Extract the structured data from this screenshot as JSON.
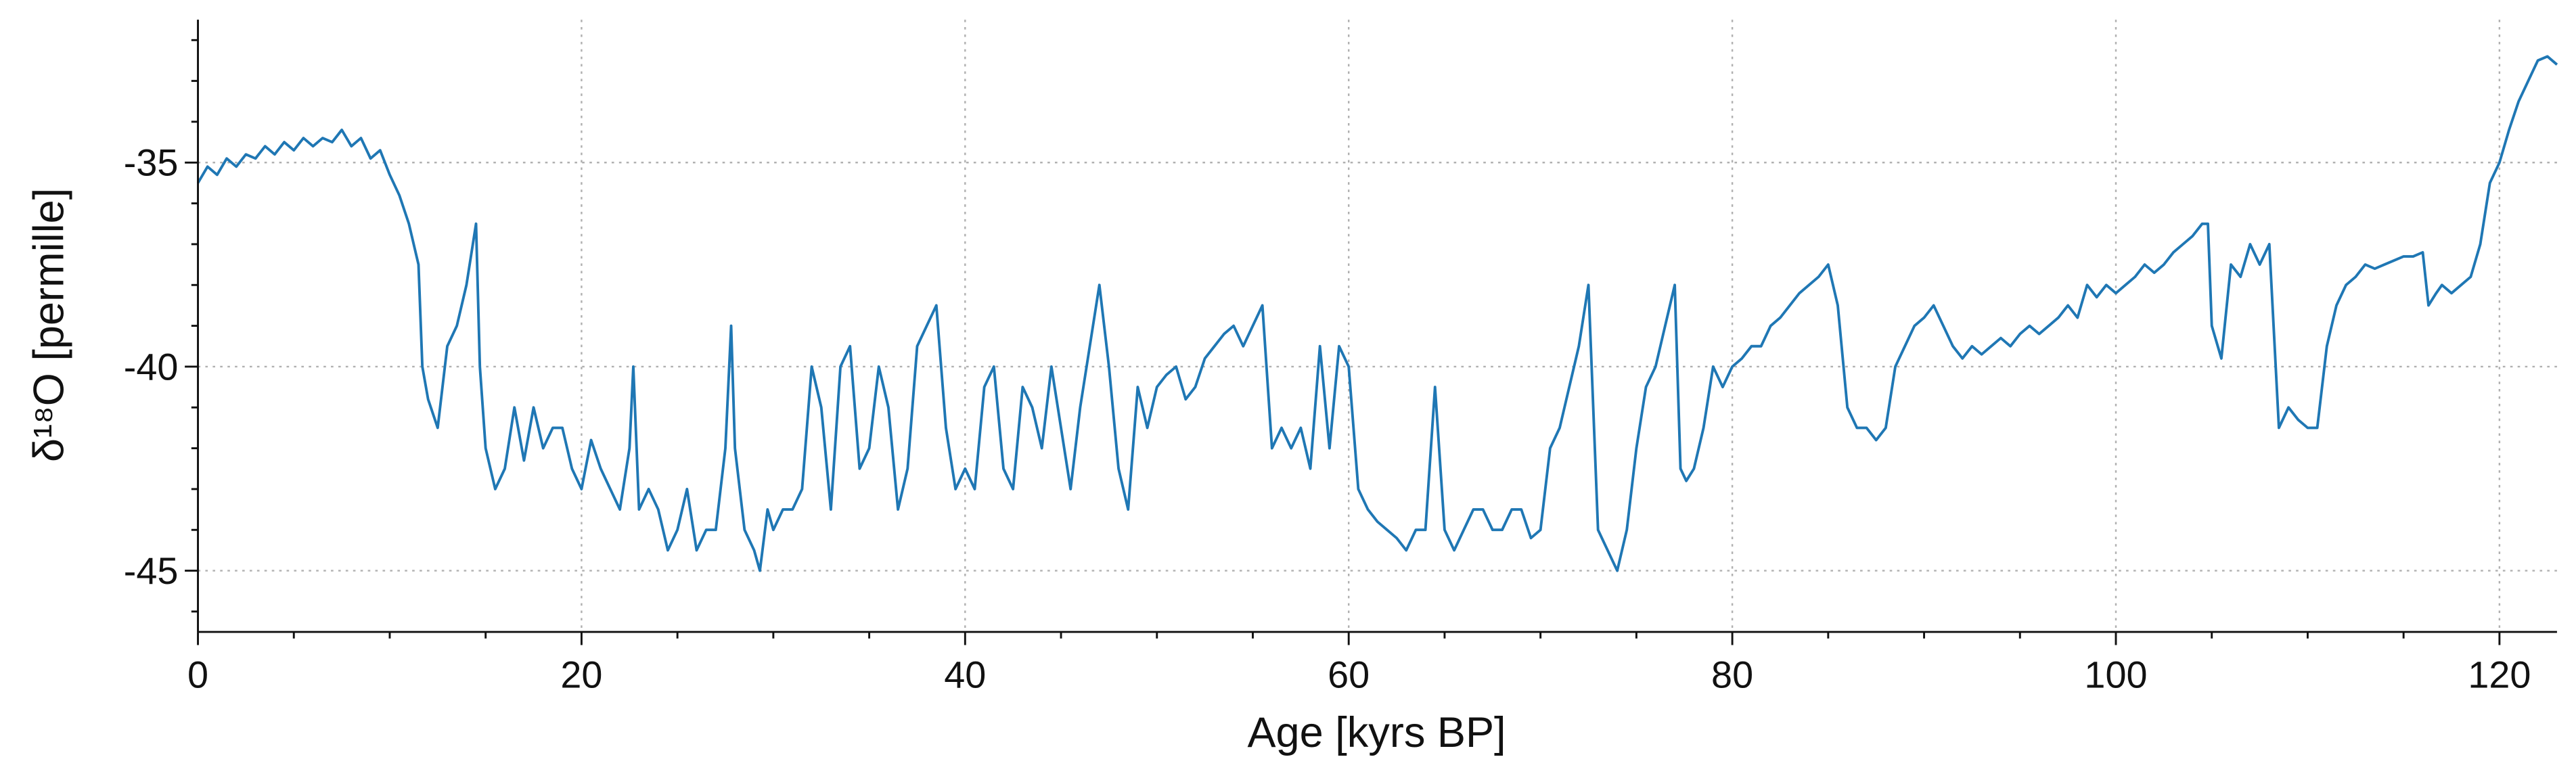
{
  "chart_data": {
    "type": "line",
    "xlabel": "Age [kyrs BP]",
    "ylabel": "δ¹⁸O [permille]",
    "xlim": [
      0,
      123
    ],
    "ylim": [
      -46.5,
      -31.5
    ],
    "xticks": [
      0,
      20,
      40,
      60,
      80,
      100,
      120
    ],
    "yticks": [
      -45,
      -40,
      -35
    ],
    "xminorticks": [
      5,
      10,
      15,
      25,
      30,
      35,
      45,
      50,
      55,
      65,
      70,
      75,
      85,
      90,
      95,
      105,
      110,
      115
    ],
    "yminorticks": [
      -46,
      -44,
      -43,
      -42,
      -41,
      -39,
      -38,
      -37,
      -36,
      -34,
      -33,
      -32
    ],
    "grid": true,
    "x": [
      0,
      0.5,
      1,
      1.5,
      2,
      2.5,
      3,
      3.5,
      4,
      4.5,
      5,
      5.5,
      6,
      6.5,
      7,
      7.5,
      8,
      8.5,
      9,
      9.5,
      10,
      10.5,
      11,
      11.5,
      11.7,
      12,
      12.5,
      13,
      13.5,
      14,
      14.5,
      14.7,
      15,
      15.5,
      16,
      16.5,
      17,
      17.5,
      18,
      18.5,
      19,
      19.5,
      20,
      20.5,
      21,
      21.5,
      22,
      22.5,
      22.7,
      23,
      23.5,
      24,
      24.5,
      25,
      25.5,
      26,
      26.5,
      27,
      27.5,
      27.8,
      28,
      28.5,
      29,
      29.3,
      29.7,
      30,
      30.5,
      31,
      31.5,
      32,
      32.5,
      33,
      33.5,
      34,
      34.5,
      35,
      35.5,
      36,
      36.5,
      37,
      37.5,
      38,
      38.5,
      39,
      39.5,
      40,
      40.5,
      41,
      41.5,
      42,
      42.5,
      43,
      43.5,
      44,
      44.5,
      45,
      45.5,
      46,
      46.5,
      47,
      47.5,
      48,
      48.5,
      49,
      49.5,
      50,
      50.5,
      51,
      51.5,
      52,
      52.5,
      53,
      53.5,
      54,
      54.5,
      55,
      55.5,
      56,
      56.5,
      57,
      57.5,
      58,
      58.5,
      59,
      59.5,
      60,
      60.5,
      61,
      61.5,
      62,
      62.5,
      63,
      63.5,
      64,
      64.5,
      65,
      65.5,
      66,
      66.5,
      67,
      67.5,
      68,
      68.5,
      69,
      69.5,
      70,
      70.5,
      71,
      71.5,
      72,
      72.5,
      73,
      73.5,
      74,
      74.5,
      75,
      75.5,
      76,
      76.5,
      77,
      77.3,
      77.6,
      78,
      78.5,
      79,
      79.5,
      80,
      80.5,
      81,
      81.5,
      82,
      82.5,
      83,
      83.5,
      84,
      84.5,
      85,
      85.5,
      86,
      86.5,
      87,
      87.5,
      88,
      88.5,
      89,
      89.5,
      90,
      90.5,
      91,
      91.5,
      92,
      92.5,
      93,
      93.5,
      94,
      94.5,
      95,
      95.5,
      96,
      96.5,
      97,
      97.5,
      98,
      98.5,
      99,
      99.5,
      100,
      100.5,
      101,
      101.5,
      102,
      102.5,
      103,
      103.5,
      104,
      104.5,
      104.8,
      105,
      105.5,
      106,
      106.5,
      107,
      107.5,
      108,
      108.5,
      109,
      109.5,
      110,
      110.5,
      111,
      111.5,
      112,
      112.5,
      113,
      113.5,
      114,
      114.5,
      115,
      115.5,
      116,
      116.3,
      116.7,
      117,
      117.5,
      118,
      118.5,
      119,
      119.5,
      120,
      120.5,
      121,
      121.5,
      122,
      122.5,
      123
    ],
    "series": [
      {
        "color": "#1f77b4",
        "values": [
          -35.5,
          -35.1,
          -35.3,
          -34.9,
          -35.1,
          -34.8,
          -34.9,
          -34.6,
          -34.8,
          -34.5,
          -34.7,
          -34.4,
          -34.6,
          -34.4,
          -34.5,
          -34.2,
          -34.6,
          -34.4,
          -34.9,
          -34.7,
          -35.3,
          -35.8,
          -36.5,
          -37.5,
          -40.0,
          -40.8,
          -41.5,
          -39.5,
          -39.0,
          -38.0,
          -36.5,
          -40.0,
          -42.0,
          -43.0,
          -42.5,
          -41.0,
          -42.3,
          -41.0,
          -42.0,
          -41.5,
          -41.5,
          -42.5,
          -43.0,
          -41.8,
          -42.5,
          -43.0,
          -43.5,
          -42.0,
          -40.0,
          -43.5,
          -43.0,
          -43.5,
          -44.5,
          -44.0,
          -43.0,
          -44.5,
          -44.0,
          -44.0,
          -42.0,
          -39.0,
          -42.0,
          -44.0,
          -44.5,
          -45.0,
          -43.5,
          -44.0,
          -43.5,
          -43.5,
          -43.0,
          -40.0,
          -41.0,
          -43.5,
          -40.0,
          -39.5,
          -42.5,
          -42.0,
          -40.0,
          -41.0,
          -43.5,
          -42.5,
          -39.5,
          -39.0,
          -38.5,
          -41.5,
          -43.0,
          -42.5,
          -43.0,
          -40.5,
          -40.0,
          -42.5,
          -43.0,
          -40.5,
          -41.0,
          -42.0,
          -40.0,
          -41.5,
          -43.0,
          -41.0,
          -39.5,
          -38.0,
          -40.0,
          -42.5,
          -43.5,
          -40.5,
          -41.5,
          -40.5,
          -40.2,
          -40.0,
          -40.8,
          -40.5,
          -39.8,
          -39.5,
          -39.2,
          -39.0,
          -39.5,
          -39.0,
          -38.5,
          -42.0,
          -41.5,
          -42.0,
          -41.5,
          -42.5,
          -39.5,
          -42.0,
          -39.5,
          -40.0,
          -43.0,
          -43.5,
          -43.8,
          -44.0,
          -44.2,
          -44.5,
          -44.0,
          -44.0,
          -40.5,
          -44.0,
          -44.5,
          -44.0,
          -43.5,
          -43.5,
          -44.0,
          -44.0,
          -43.5,
          -43.5,
          -44.2,
          -44.0,
          -42.0,
          -41.5,
          -40.5,
          -39.5,
          -38.0,
          -44.0,
          -44.5,
          -45.0,
          -44.0,
          -42.0,
          -40.5,
          -40.0,
          -39.0,
          -38.0,
          -42.5,
          -42.8,
          -42.5,
          -41.5,
          -40.0,
          -40.5,
          -40.0,
          -39.8,
          -39.5,
          -39.5,
          -39.0,
          -38.8,
          -38.5,
          -38.2,
          -38.0,
          -37.8,
          -37.5,
          -38.5,
          -41.0,
          -41.5,
          -41.5,
          -41.8,
          -41.5,
          -40.0,
          -39.5,
          -39.0,
          -38.8,
          -38.5,
          -39.0,
          -39.5,
          -39.8,
          -39.5,
          -39.7,
          -39.5,
          -39.3,
          -39.5,
          -39.2,
          -39.0,
          -39.2,
          -39.0,
          -38.8,
          -38.5,
          -38.8,
          -38.0,
          -38.3,
          -38.0,
          -38.2,
          -38.0,
          -37.8,
          -37.5,
          -37.7,
          -37.5,
          -37.2,
          -37.0,
          -36.8,
          -36.5,
          -36.5,
          -39.0,
          -39.8,
          -37.5,
          -37.8,
          -37.0,
          -37.5,
          -37.0,
          -41.5,
          -41.0,
          -41.3,
          -41.5,
          -41.5,
          -39.5,
          -38.5,
          -38.0,
          -37.8,
          -37.5,
          -37.6,
          -37.5,
          -37.4,
          -37.3,
          -37.3,
          -37.2,
          -38.5,
          -38.2,
          -38.0,
          -38.2,
          -38.0,
          -37.8,
          -37.0,
          -35.5,
          -35.0,
          -34.2,
          -33.5,
          -33.0,
          -32.5,
          -32.4,
          -32.6
        ]
      }
    ]
  }
}
